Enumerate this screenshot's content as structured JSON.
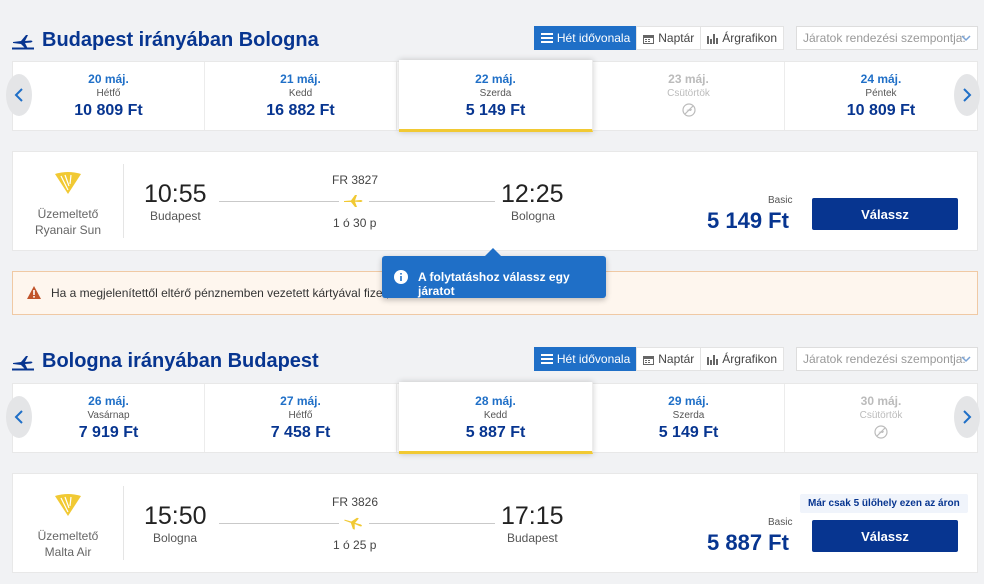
{
  "colors": {
    "primary": "#073590",
    "accent": "#1f6fc7",
    "highlight": "#f1c933",
    "warning_bg": "#fef6ee"
  },
  "view_tabs": {
    "week": "Hét idővonala",
    "calendar": "Naptár",
    "chart": "Árgrafikon",
    "sort_placeholder": "Járatok rendezési szempontja:"
  },
  "outbound": {
    "title": "Budapest irányában Bologna",
    "days": [
      {
        "date": "20 máj.",
        "weekday": "Hétfő",
        "price": "10 809 Ft"
      },
      {
        "date": "21 máj.",
        "weekday": "Kedd",
        "price": "16 882 Ft"
      },
      {
        "date": "22 máj.",
        "weekday": "Szerda",
        "price": "5 149 Ft"
      },
      {
        "date": "23 máj.",
        "weekday": "Csütörtök",
        "price": ""
      },
      {
        "date": "24 máj.",
        "weekday": "Péntek",
        "price": "10 809 Ft"
      }
    ],
    "flight": {
      "operated_label": "Üzemeltető",
      "operator": "Ryanair Sun",
      "flight_no": "FR 3827",
      "dep_time": "10:55",
      "dep_city": "Budapest",
      "arr_time": "12:25",
      "arr_city": "Bologna",
      "duration": "1 ó 30 p",
      "fare": "Basic",
      "price": "5 149 Ft",
      "button": "Válassz"
    }
  },
  "warning_text": "Ha a megjelenítettől eltérő pénznemben vezetett kártyával fizet, a",
  "tooltip_text": "A folytatáshoz válassz egy járatot",
  "inbound": {
    "title": "Bologna irányában Budapest",
    "days": [
      {
        "date": "26 máj.",
        "weekday": "Vasárnap",
        "price": "7 919 Ft"
      },
      {
        "date": "27 máj.",
        "weekday": "Hétfő",
        "price": "7 458 Ft"
      },
      {
        "date": "28 máj.",
        "weekday": "Kedd",
        "price": "5 887 Ft"
      },
      {
        "date": "29 máj.",
        "weekday": "Szerda",
        "price": "5 149 Ft"
      },
      {
        "date": "30 máj.",
        "weekday": "Csütörtök",
        "price": ""
      }
    ],
    "flight": {
      "operated_label": "Üzemeltető",
      "operator": "Malta Air",
      "flight_no": "FR 3826",
      "dep_time": "15:50",
      "dep_city": "Bologna",
      "arr_time": "17:15",
      "arr_city": "Budapest",
      "duration": "1 ó 25 p",
      "seats_left": "Már csak 5 ülőhely ezen az áron",
      "fare": "Basic",
      "price": "5 887 Ft",
      "button": "Válassz"
    }
  }
}
